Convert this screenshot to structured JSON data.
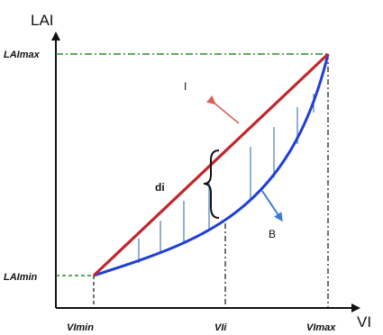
{
  "labels": {
    "y_axis": "LAI",
    "x_axis": "VI",
    "lai_max": "LAImax",
    "lai_min": "LAImin",
    "vi_min": "VImin",
    "vi_i": "VIi",
    "vi_max": "VImax",
    "line_label": "I",
    "curve_label": "B",
    "distance_label": "di"
  },
  "colors": {
    "line": "#c0272d",
    "curve": "#1f3fd6",
    "hatch": "#3a6fb0",
    "guide_green": "#2e8b2e",
    "axis": "#111111",
    "arrow_red": "#d9605a",
    "arrow_blue": "#3d7ad6"
  }
}
